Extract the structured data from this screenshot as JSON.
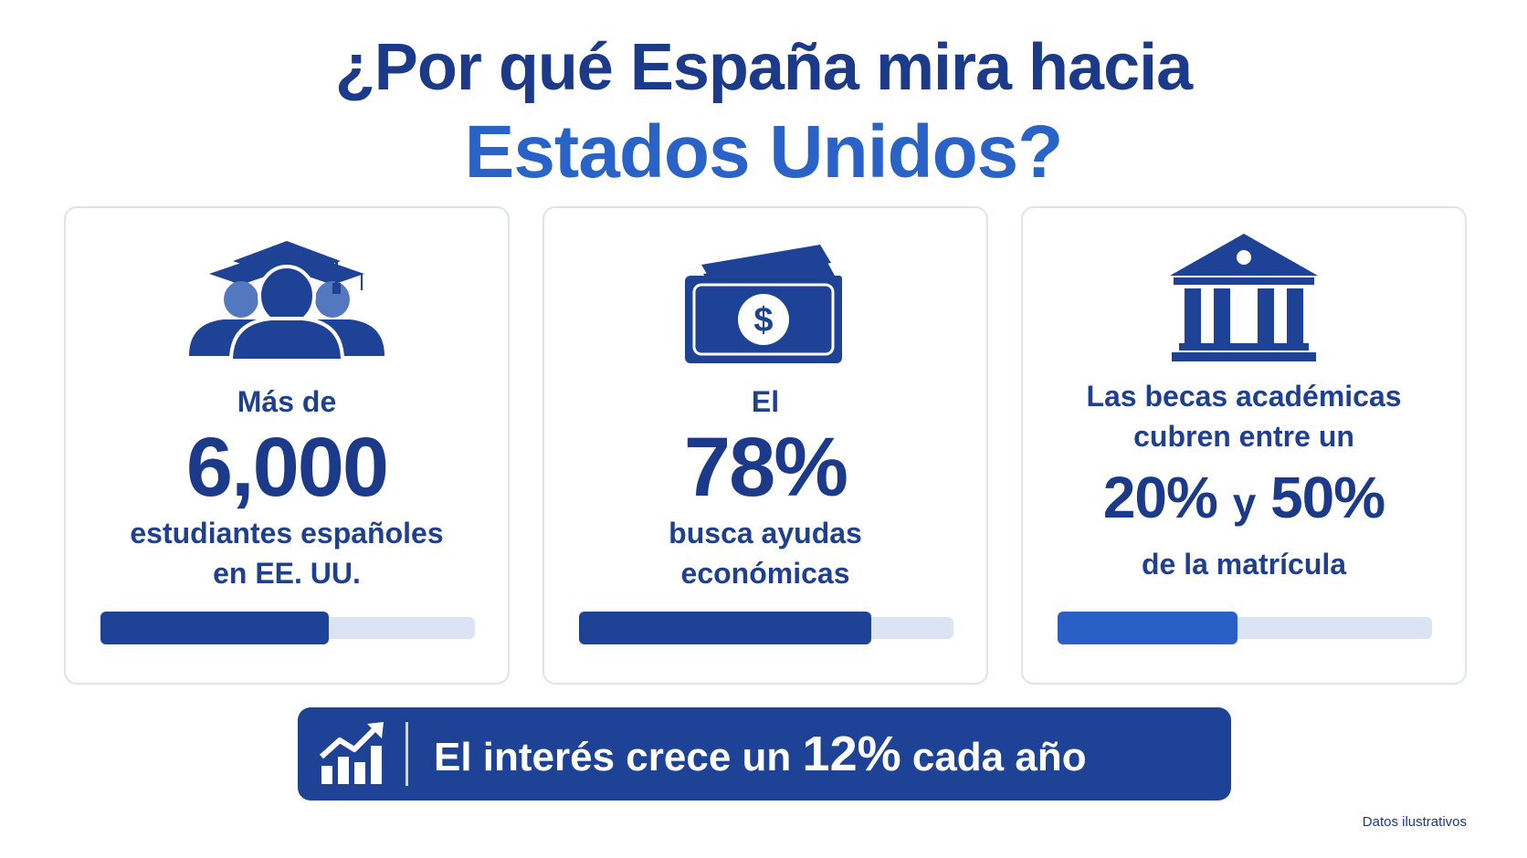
{
  "title": {
    "line1": "¿Por qué España mira hacia",
    "line2": "Estados Unidos?"
  },
  "colors": {
    "navy": "#1e4396",
    "accent": "#2a63c8",
    "track": "#dbe4f2",
    "border": "#dbe3f1"
  },
  "cards": [
    {
      "icon": "graduates-icon",
      "pre": "Más de",
      "value": "6,000",
      "post1": "estudiantes españoles",
      "post2": "en EE. UU.",
      "progress": 0.61
    },
    {
      "icon": "money-icon",
      "pre": "El",
      "value": "78%",
      "post1": "busca ayudas",
      "post2": "económicas",
      "progress": 0.78
    },
    {
      "icon": "institution-icon",
      "pre1": "Las becas académicas",
      "pre2": "cubren entre un",
      "value_a": "20%",
      "connector": "y",
      "value_b": "50%",
      "post": "de la matrícula",
      "progress": 0.48
    }
  ],
  "banner": {
    "icon": "growth-chart-icon",
    "text_before": "El interés crece un ",
    "highlight": "12%",
    "text_after": " cada año"
  },
  "footnote": "Datos ilustrativos"
}
